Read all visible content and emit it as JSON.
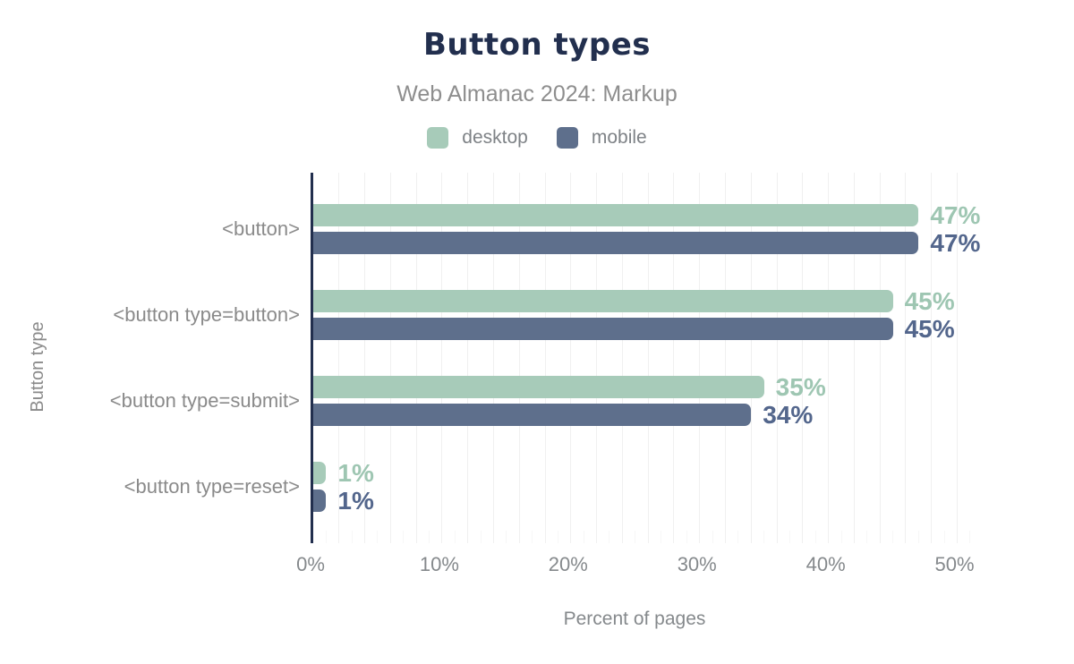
{
  "chart_data": {
    "type": "bar",
    "orientation": "horizontal",
    "title": "Button types",
    "subtitle": "Web Almanac 2024: Markup",
    "xlabel": "Percent of pages",
    "ylabel": "Button type",
    "categories": [
      "<button>",
      "<button type=button>",
      "<button type=submit>",
      "<button type=reset>"
    ],
    "series": [
      {
        "name": "desktop",
        "color": "#a7cbb9",
        "label_color": "#9ec6b2",
        "values": [
          47,
          45,
          35,
          1
        ]
      },
      {
        "name": "mobile",
        "color": "#5e6f8c",
        "label_color": "#53668c",
        "values": [
          47,
          45,
          34,
          1
        ]
      }
    ],
    "value_suffix": "%",
    "x_ticks": [
      0,
      10,
      20,
      30,
      40,
      50
    ],
    "xlim": [
      0,
      51.7
    ],
    "grid_step": 2,
    "grid": true,
    "legend_position": "top"
  },
  "theme": {
    "background": "#ffffff",
    "title_color": "#222f4e",
    "axis_line_color": "#222f4e",
    "text_gray": "#8a8a8a",
    "gridline_major": "#f0f0f0",
    "gridline_minor": "#f7f7f7"
  }
}
